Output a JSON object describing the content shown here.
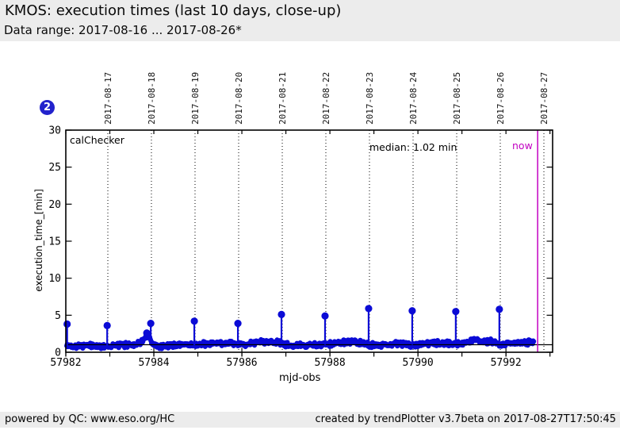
{
  "header": {
    "title": "KMOS: execution times (last 10 days, close-up)",
    "subtitle": "Data range: 2017-08-16 ... 2017-08-26*"
  },
  "badge": {
    "value": "2"
  },
  "footer": {
    "left": "powered by QC: www.eso.org/HC",
    "right": "created by trendPlotter v3.7beta on 2017-08-27T17:50:45"
  },
  "chart_data": {
    "type": "scatter",
    "series_label": "calChecker",
    "median_label": "median: 1.02 min",
    "median_value": 1.02,
    "now_label": "now",
    "now_mjd": 57992.72,
    "xlabel": "mjd-obs",
    "ylabel": "execution_time_[min]",
    "xlim": [
      57982,
      57993.06
    ],
    "ylim": [
      0,
      30
    ],
    "x_ticks_labeled": [
      57982,
      57984,
      57986,
      57988,
      57990,
      57992
    ],
    "x_minor_tick_step": 1,
    "y_ticks": [
      0,
      5,
      10,
      15,
      20,
      25,
      30
    ],
    "grid": "vertical-dotted-date-lines",
    "legend_position": "inside-top-left",
    "date_lines": [
      {
        "date": "2017-08-17",
        "mjd": 57982.955
      },
      {
        "date": "2017-08-18",
        "mjd": 57983.945
      },
      {
        "date": "2017-08-19",
        "mjd": 57984.936
      },
      {
        "date": "2017-08-20",
        "mjd": 57985.927
      },
      {
        "date": "2017-08-21",
        "mjd": 57986.918
      },
      {
        "date": "2017-08-22",
        "mjd": 57987.908
      },
      {
        "date": "2017-08-23",
        "mjd": 57988.899
      },
      {
        "date": "2017-08-24",
        "mjd": 57989.89
      },
      {
        "date": "2017-08-25",
        "mjd": 57990.881
      },
      {
        "date": "2017-08-26",
        "mjd": 57991.871
      },
      {
        "date": "2017-08-27",
        "mjd": 57992.862
      }
    ],
    "spikes": [
      {
        "mjd": 57982.03,
        "value": 3.8
      },
      {
        "mjd": 57982.94,
        "value": 3.6
      },
      {
        "mjd": 57983.84,
        "value": 2.6
      },
      {
        "mjd": 57983.93,
        "value": 3.9
      },
      {
        "mjd": 57984.92,
        "value": 4.2
      },
      {
        "mjd": 57985.91,
        "value": 3.9
      },
      {
        "mjd": 57986.9,
        "value": 5.1
      },
      {
        "mjd": 57987.89,
        "value": 4.9
      },
      {
        "mjd": 57988.88,
        "value": 5.9
      },
      {
        "mjd": 57989.87,
        "value": 5.6
      },
      {
        "mjd": 57990.86,
        "value": 5.5
      },
      {
        "mjd": 57991.85,
        "value": 5.8
      }
    ],
    "baseline_centerline": [
      [
        57982.0,
        0.85
      ],
      [
        57982.4,
        0.9
      ],
      [
        57982.8,
        0.8
      ],
      [
        57983.1,
        0.9
      ],
      [
        57983.4,
        1.0
      ],
      [
        57983.65,
        1.2
      ],
      [
        57983.8,
        1.8
      ],
      [
        57983.88,
        2.2
      ],
      [
        57983.96,
        1.1
      ],
      [
        57984.1,
        0.8
      ],
      [
        57984.4,
        0.95
      ],
      [
        57984.7,
        1.1
      ],
      [
        57984.95,
        0.95
      ],
      [
        57985.2,
        1.1
      ],
      [
        57985.5,
        1.25
      ],
      [
        57985.8,
        1.1
      ],
      [
        57986.0,
        1.05
      ],
      [
        57986.2,
        1.2
      ],
      [
        57986.5,
        1.45
      ],
      [
        57986.75,
        1.4
      ],
      [
        57986.95,
        1.1
      ],
      [
        57987.1,
        0.85
      ],
      [
        57987.4,
        0.95
      ],
      [
        57987.7,
        1.0
      ],
      [
        57987.95,
        1.0
      ],
      [
        57988.2,
        1.3
      ],
      [
        57988.5,
        1.4
      ],
      [
        57988.8,
        1.15
      ],
      [
        57989.0,
        0.95
      ],
      [
        57989.3,
        1.05
      ],
      [
        57989.6,
        1.15
      ],
      [
        57989.9,
        1.0
      ],
      [
        57990.2,
        1.15
      ],
      [
        57990.5,
        1.2
      ],
      [
        57990.8,
        1.15
      ],
      [
        57991.0,
        1.2
      ],
      [
        57991.2,
        1.45
      ],
      [
        57991.35,
        1.7
      ],
      [
        57991.5,
        1.45
      ],
      [
        57991.7,
        1.4
      ],
      [
        57991.9,
        1.05
      ],
      [
        57992.1,
        1.2
      ],
      [
        57992.35,
        1.3
      ],
      [
        57992.55,
        1.35
      ],
      [
        57992.63,
        1.3
      ]
    ],
    "band_halfwidth": 0.42,
    "colors": {
      "data": "#0b0bd6",
      "now_line": "#c200c2",
      "median_line": "#000000",
      "date_line": "#000000",
      "frame": "#000000"
    }
  }
}
